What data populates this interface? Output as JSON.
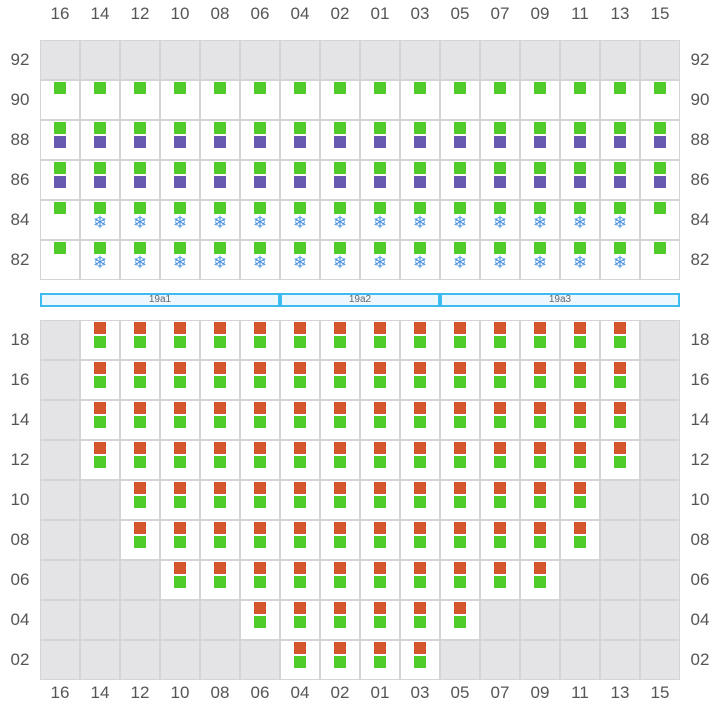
{
  "columns": [
    "16",
    "14",
    "12",
    "10",
    "08",
    "06",
    "04",
    "02",
    "01",
    "03",
    "05",
    "07",
    "09",
    "11",
    "13",
    "15"
  ],
  "colors": {
    "green": "#4fcc2a",
    "purple": "#6659b0",
    "orange": "#d4552c",
    "snowflake": "#4a90e2",
    "band_border": "#3bbcf0",
    "inactive": "#e4e4e7"
  },
  "legend_note": "cell codes: g=green square, p=purple square, o=orange square, s=snowflake icon, x=inactive",
  "top_section": {
    "rows": [
      {
        "label": "92",
        "cells": [
          "x",
          "x",
          "x",
          "x",
          "x",
          "x",
          "x",
          "x",
          "x",
          "x",
          "x",
          "x",
          "x",
          "x",
          "x",
          "x"
        ]
      },
      {
        "label": "90",
        "cells": [
          "g",
          "g",
          "g",
          "g",
          "g",
          "g",
          "g",
          "g",
          "g",
          "g",
          "g",
          "g",
          "g",
          "g",
          "g",
          "g"
        ]
      },
      {
        "label": "88",
        "cells": [
          "gp",
          "gp",
          "gp",
          "gp",
          "gp",
          "gp",
          "gp",
          "gp",
          "gp",
          "gp",
          "gp",
          "gp",
          "gp",
          "gp",
          "gp",
          "gp"
        ]
      },
      {
        "label": "86",
        "cells": [
          "gp",
          "gp",
          "gp",
          "gp",
          "gp",
          "gp",
          "gp",
          "gp",
          "gp",
          "gp",
          "gp",
          "gp",
          "gp",
          "gp",
          "gp",
          "gp"
        ]
      },
      {
        "label": "84",
        "cells": [
          "g",
          "gs",
          "gs",
          "gs",
          "gs",
          "gs",
          "gs",
          "gs",
          "gs",
          "gs",
          "gs",
          "gs",
          "gs",
          "gs",
          "gs",
          "g"
        ]
      },
      {
        "label": "82",
        "cells": [
          "g",
          "gs",
          "gs",
          "gs",
          "gs",
          "gs",
          "gs",
          "gs",
          "gs",
          "gs",
          "gs",
          "gs",
          "gs",
          "gs",
          "gs",
          "g"
        ]
      }
    ]
  },
  "bands": [
    {
      "label": "19a1",
      "span": 6
    },
    {
      "label": "19a2",
      "span": 4
    },
    {
      "label": "19a3",
      "span": 6
    }
  ],
  "bottom_section": {
    "rows": [
      {
        "label": "18",
        "cells": [
          "x",
          "og",
          "og",
          "og",
          "og",
          "og",
          "og",
          "og",
          "og",
          "og",
          "og",
          "og",
          "og",
          "og",
          "og",
          "x"
        ]
      },
      {
        "label": "16",
        "cells": [
          "x",
          "og",
          "og",
          "og",
          "og",
          "og",
          "og",
          "og",
          "og",
          "og",
          "og",
          "og",
          "og",
          "og",
          "og",
          "x"
        ]
      },
      {
        "label": "14",
        "cells": [
          "x",
          "og",
          "og",
          "og",
          "og",
          "og",
          "og",
          "og",
          "og",
          "og",
          "og",
          "og",
          "og",
          "og",
          "og",
          "x"
        ]
      },
      {
        "label": "12",
        "cells": [
          "x",
          "og",
          "og",
          "og",
          "og",
          "og",
          "og",
          "og",
          "og",
          "og",
          "og",
          "og",
          "og",
          "og",
          "og",
          "x"
        ]
      },
      {
        "label": "10",
        "cells": [
          "x",
          "x",
          "og",
          "og",
          "og",
          "og",
          "og",
          "og",
          "og",
          "og",
          "og",
          "og",
          "og",
          "og",
          "x",
          "x"
        ]
      },
      {
        "label": "08",
        "cells": [
          "x",
          "x",
          "og",
          "og",
          "og",
          "og",
          "og",
          "og",
          "og",
          "og",
          "og",
          "og",
          "og",
          "og",
          "x",
          "x"
        ]
      },
      {
        "label": "06",
        "cells": [
          "x",
          "x",
          "x",
          "og",
          "og",
          "og",
          "og",
          "og",
          "og",
          "og",
          "og",
          "og",
          "og",
          "x",
          "x",
          "x"
        ]
      },
      {
        "label": "04",
        "cells": [
          "x",
          "x",
          "x",
          "x",
          "x",
          "og",
          "og",
          "og",
          "og",
          "og",
          "og",
          "x",
          "x",
          "x",
          "x",
          "x"
        ]
      },
      {
        "label": "02",
        "cells": [
          "x",
          "x",
          "x",
          "x",
          "x",
          "x",
          "og",
          "og",
          "og",
          "og",
          "x",
          "x",
          "x",
          "x",
          "x",
          "x"
        ]
      }
    ]
  }
}
